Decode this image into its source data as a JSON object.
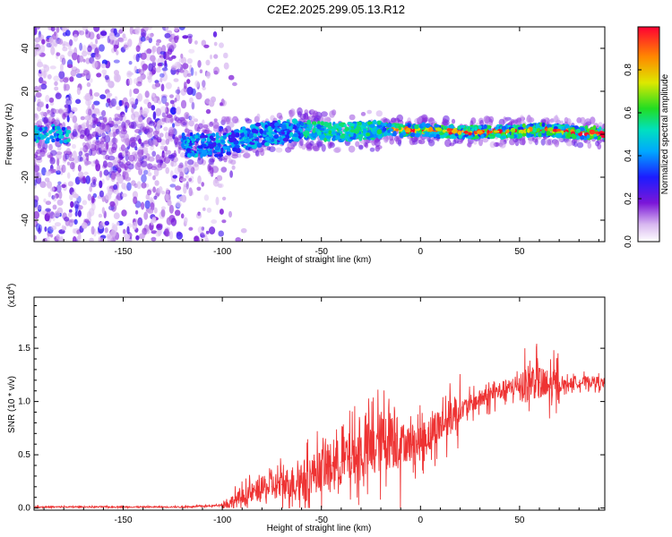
{
  "figure": {
    "title": "C2E2.2025.299.05.13.R12"
  },
  "chart_data": [
    {
      "type": "heatmap",
      "xlabel": "Height of straight line (km)",
      "ylabel": "Frequency (Hz)",
      "xlim": [
        -195,
        93
      ],
      "ylim": [
        -50,
        50
      ],
      "xticks": [
        "-150",
        "-100",
        "-50",
        "0",
        "50"
      ],
      "xtick_values": [
        -150,
        -100,
        -50,
        0,
        50
      ],
      "yticks": [
        "-40",
        "-20",
        "0",
        "20",
        "40"
      ],
      "ytick_values": [
        -40,
        -20,
        0,
        20,
        40
      ],
      "colorbar": {
        "label": "Normalized spectral amplitude",
        "range": [
          0,
          1
        ],
        "ticks": [
          "0.0",
          "0.2",
          "0.4",
          "0.6",
          "0.8"
        ],
        "tick_values": [
          0,
          0.2,
          0.4,
          0.6,
          0.8
        ]
      },
      "ridge": {
        "description_free_values": true,
        "x": [
          -195,
          -180,
          -150,
          -120,
          -100,
          -80,
          -60,
          -40,
          -20,
          0,
          20,
          40,
          60,
          80,
          93
        ],
        "y": [
          0,
          0,
          -3,
          -5,
          -5,
          0,
          2,
          1,
          2,
          2,
          1,
          1,
          2,
          1,
          0
        ]
      }
    },
    {
      "type": "line",
      "xlabel": "Height of straight line (km)",
      "ylabel": "SNR (10 * v/v)",
      "y_multiplier": "(x10",
      "y_multiplier_exp": "4",
      "xlim": [
        -195,
        93
      ],
      "ylim": [
        -0.02,
        1.98
      ],
      "xticks": [
        "-150",
        "-100",
        "-50",
        "0",
        "50"
      ],
      "xtick_values": [
        -150,
        -100,
        -50,
        0,
        50
      ],
      "yticks": [
        "0.0",
        "0.5",
        "1.0",
        "1.5"
      ],
      "ytick_values": [
        0,
        0.5,
        1.0,
        1.5
      ],
      "series": [
        {
          "name": "SNR",
          "color": "#ee3333",
          "x": [
            -195,
            -180,
            -160,
            -140,
            -120,
            -105,
            -100,
            -95,
            -90,
            -85,
            -80,
            -75,
            -70,
            -65,
            -60,
            -55,
            -50,
            -45,
            -40,
            -35,
            -30,
            -25,
            -20,
            -15,
            -12,
            -10,
            -5,
            0,
            5,
            10,
            15,
            20,
            25,
            30,
            35,
            40,
            45,
            50,
            55,
            58,
            60,
            62,
            65,
            70,
            75,
            80,
            85,
            90,
            93
          ],
          "y": [
            0.01,
            0.01,
            0.01,
            0.01,
            0.01,
            0.02,
            0.03,
            0.06,
            0.1,
            0.14,
            0.18,
            0.2,
            0.22,
            0.24,
            0.27,
            0.32,
            0.36,
            0.4,
            0.43,
            0.47,
            0.5,
            0.55,
            0.62,
            0.68,
            0.68,
            0.62,
            0.6,
            0.62,
            0.7,
            0.78,
            0.85,
            0.92,
            0.97,
            1.02,
            1.05,
            1.1,
            1.12,
            1.15,
            1.18,
            1.2,
            1.18,
            1.14,
            1.13,
            1.15,
            1.17,
            1.18,
            1.19,
            1.18,
            1.17
          ]
        }
      ]
    }
  ]
}
